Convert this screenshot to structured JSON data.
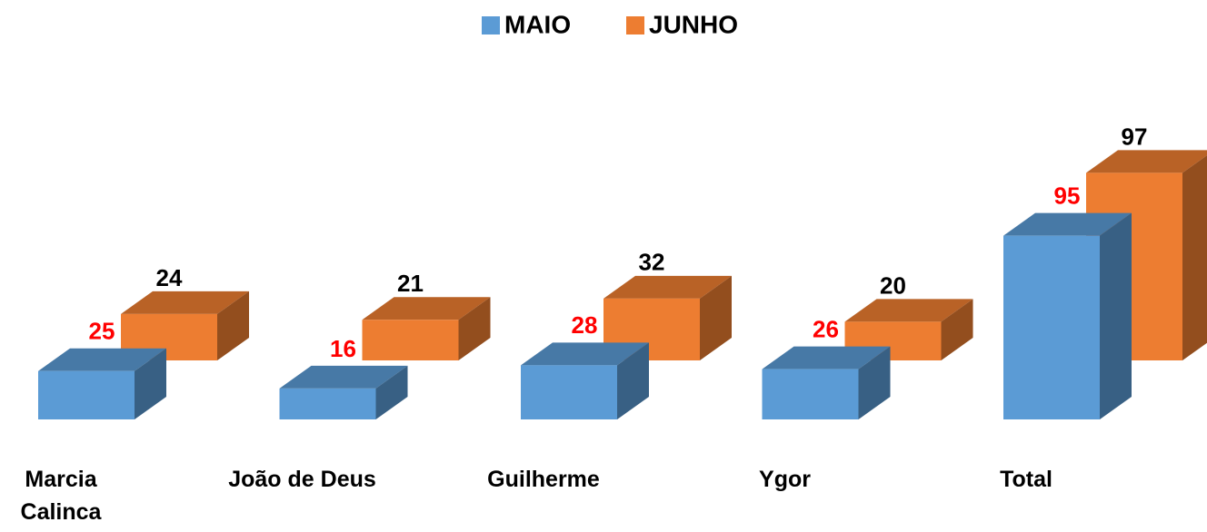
{
  "chart_data": {
    "type": "bar3d",
    "categories": [
      "Marcia Calinca",
      "João de Deus",
      "Guilherme",
      "Ygor",
      "Total"
    ],
    "series": [
      {
        "name": "MAIO",
        "color": "#5b9bd5",
        "label_color": "#ff0000",
        "values": [
          25,
          16,
          28,
          26,
          95
        ]
      },
      {
        "name": "JUNHO",
        "color": "#ed7d31",
        "label_color": "#000000",
        "values": [
          24,
          21,
          32,
          20,
          97
        ]
      }
    ],
    "legend": "top"
  }
}
